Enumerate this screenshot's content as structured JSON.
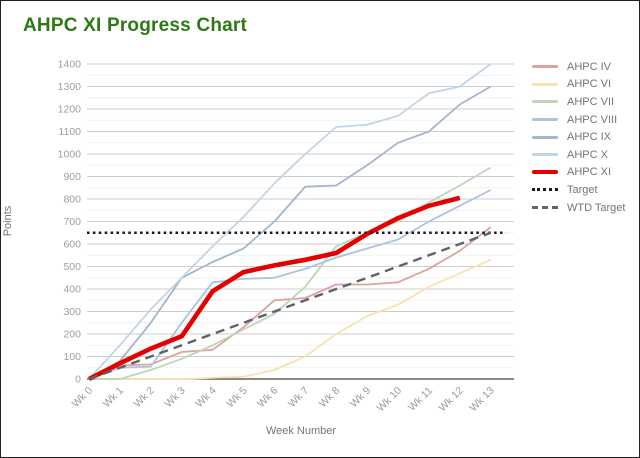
{
  "chart_data": {
    "type": "line",
    "title": "AHPC XI Progress Chart",
    "xlabel": "Week Number",
    "ylabel": "Points",
    "x_categories": [
      "Wk 0",
      "Wk 1",
      "Wk 2",
      "Wk 3",
      "Wk 4",
      "Wk 5",
      "Wk 6",
      "Wk 7",
      "Wk 8",
      "Wk 9",
      "Wk 10",
      "Wk 11",
      "Wk 12",
      "Wk 13"
    ],
    "ylim": [
      0,
      1400
    ],
    "ytick_step": 100,
    "grid": "horizontal-major-and-minor",
    "legend_position": "right",
    "title_color": "#2d7a15",
    "series": [
      {
        "name": "AHPC IV",
        "color": "#dca49c",
        "width": 1.8,
        "dash": "solid",
        "values": [
          0,
          60,
          65,
          120,
          130,
          230,
          350,
          360,
          420,
          420,
          430,
          490,
          570,
          675
        ]
      },
      {
        "name": "AHPC VI",
        "color": "#f7e3b0",
        "width": 1.8,
        "dash": "solid",
        "values": [
          0,
          0,
          0,
          0,
          5,
          10,
          40,
          100,
          200,
          280,
          330,
          410,
          470,
          530
        ]
      },
      {
        "name": "AHPC VII",
        "color": "#bcd6b6",
        "width": 1.8,
        "dash": "solid",
        "values": [
          0,
          0,
          40,
          90,
          150,
          220,
          290,
          410,
          590,
          650,
          700,
          785,
          860,
          940
        ]
      },
      {
        "name": "AHPC VIII",
        "color": "#aac4e0",
        "width": 1.8,
        "dash": "solid",
        "values": [
          0,
          50,
          55,
          250,
          430,
          445,
          450,
          490,
          540,
          580,
          620,
          700,
          770,
          840
        ]
      },
      {
        "name": "AHPC IX",
        "color": "#a2b6cc",
        "width": 1.8,
        "dash": "solid",
        "values": [
          0,
          80,
          250,
          450,
          520,
          580,
          700,
          855,
          860,
          950,
          1050,
          1100,
          1220,
          1300
        ]
      },
      {
        "name": "AHPC X",
        "color": "#c0d5e8",
        "width": 1.8,
        "dash": "solid",
        "values": [
          0,
          150,
          310,
          450,
          590,
          720,
          870,
          1000,
          1120,
          1130,
          1170,
          1270,
          1300,
          1400
        ]
      },
      {
        "name": "AHPC XI",
        "color": "#e50000",
        "width": 4.6,
        "dash": "solid",
        "values": [
          0,
          70,
          135,
          190,
          390,
          475,
          505,
          530,
          560,
          645,
          715,
          770,
          805
        ]
      },
      {
        "name": "Target",
        "color": "#1a1a1a",
        "width": 2.6,
        "dash": "dotted",
        "full_width": true,
        "values": [
          650,
          650,
          650,
          650,
          650,
          650,
          650,
          650,
          650,
          650,
          650,
          650,
          650,
          650
        ]
      },
      {
        "name": "WTD Target",
        "color": "#5f6368",
        "width": 2.4,
        "dash": "dashed",
        "values": [
          0,
          50,
          100,
          150,
          200,
          250,
          300,
          350,
          400,
          450,
          500,
          550,
          600,
          650
        ]
      }
    ]
  }
}
